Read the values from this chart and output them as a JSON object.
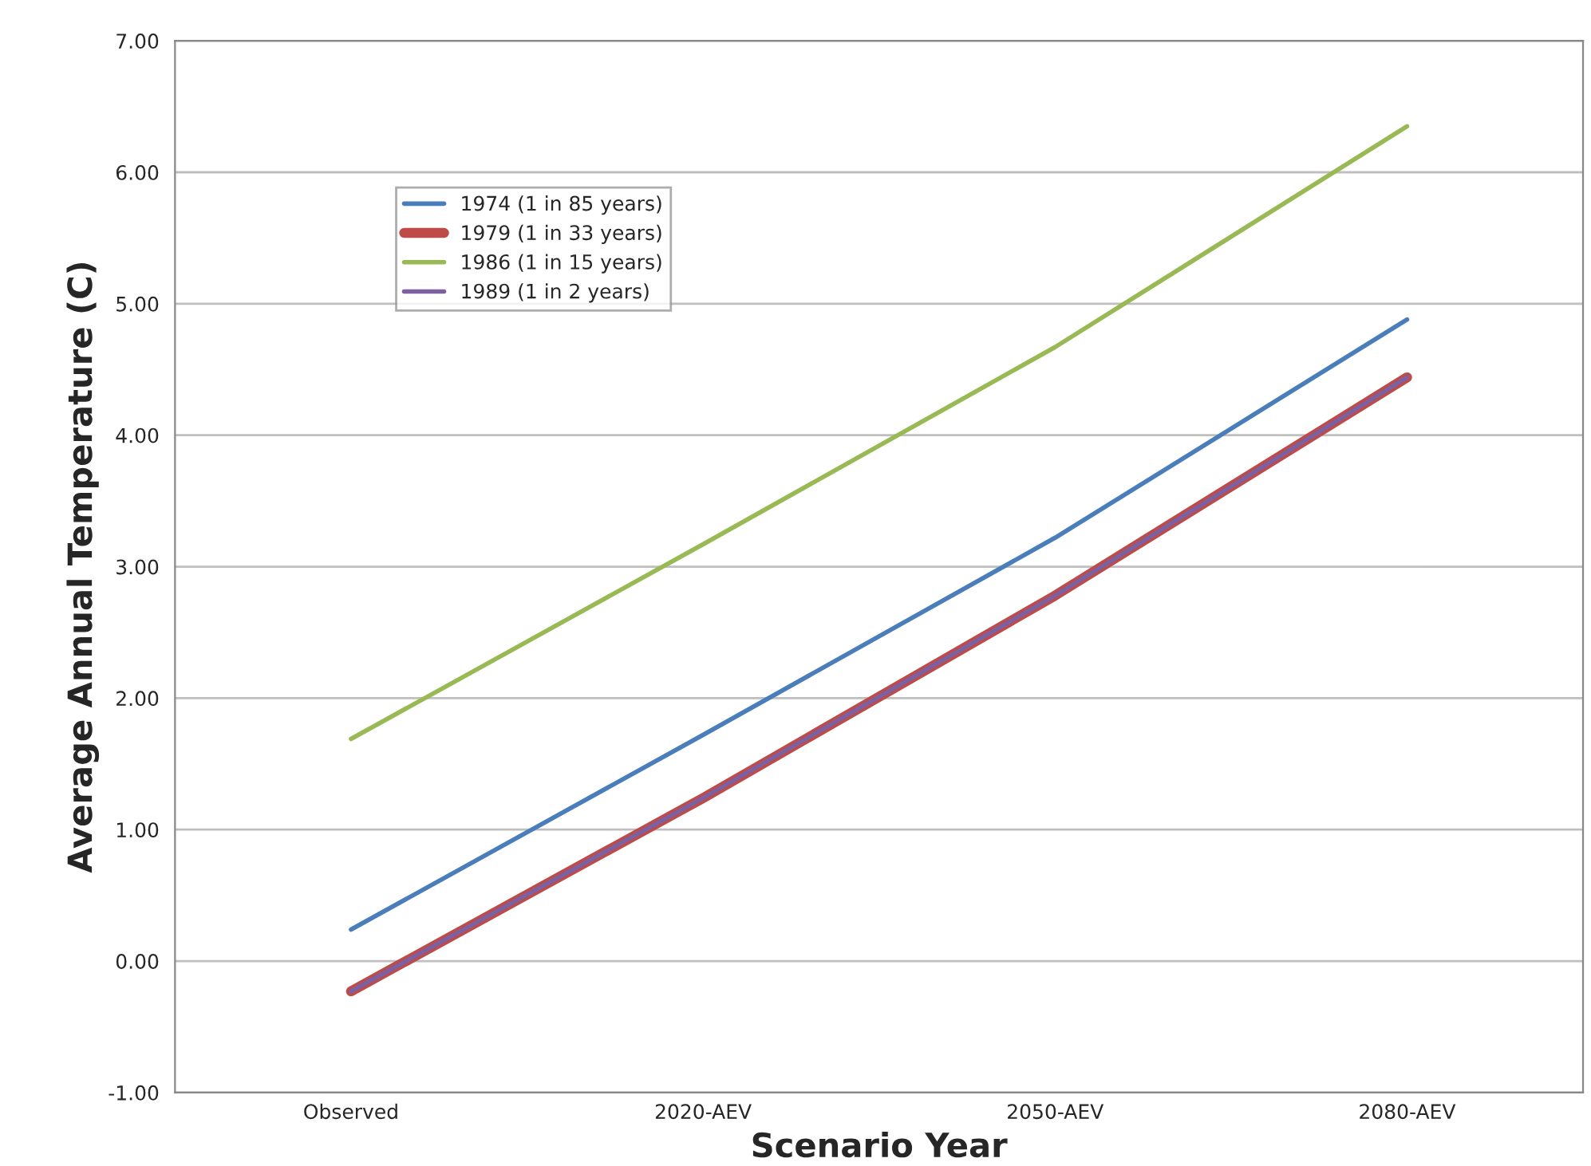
{
  "chart_data": {
    "type": "line",
    "xlabel": "Scenario Year",
    "ylabel": "Average Annual Temperature (C)",
    "categories": [
      "Observed",
      "2020-AEV",
      "2050-AEV",
      "2080-AEV"
    ],
    "series": [
      {
        "name": "1974 (1 in 85 years)",
        "color": "#4a7ebb",
        "values": [
          0.24,
          1.72,
          3.22,
          4.88
        ]
      },
      {
        "name": "1979 (1 in 33 years)",
        "color": "#be4b48",
        "values": [
          -0.23,
          1.24,
          2.78,
          4.44
        ]
      },
      {
        "name": "1986 (1 in 15 years)",
        "color": "#98b954",
        "values": [
          1.69,
          3.17,
          4.67,
          6.35
        ]
      },
      {
        "name": "1989 (1 in 2 years)",
        "color": "#7d60a0",
        "values": [
          -0.23,
          1.24,
          2.78,
          4.44
        ]
      }
    ],
    "ylim": [
      -1,
      7
    ],
    "yticks": [
      {
        "value": -1,
        "label": "-1.00"
      },
      {
        "value": 0,
        "label": "0.00"
      },
      {
        "value": 1,
        "label": "1.00"
      },
      {
        "value": 2,
        "label": "2.00"
      },
      {
        "value": 3,
        "label": "3.00"
      },
      {
        "value": 4,
        "label": "4.00"
      },
      {
        "value": 5,
        "label": "5.00"
      },
      {
        "value": 6,
        "label": "6.00"
      },
      {
        "value": 7,
        "label": "7.00"
      }
    ],
    "grid": "y",
    "legend": "top left",
    "marker": "none",
    "line_style": "solid"
  }
}
